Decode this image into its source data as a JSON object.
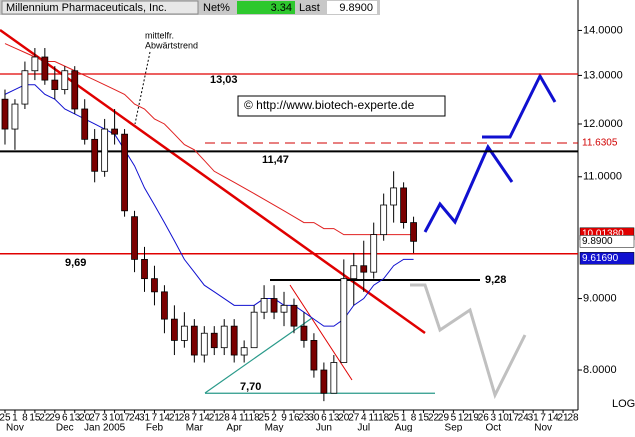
{
  "chart_data": {
    "type": "candlestick",
    "header": {
      "name": "Millennium Pharmaceuticals, Inc.",
      "net_label": "Net%",
      "net": 3.34,
      "last_label": "Last",
      "last": {
        "value": 9.89,
        "label": "9.8900"
      }
    },
    "categories": [
      "25",
      "1",
      "8",
      "15",
      "22",
      "29",
      "6",
      "13",
      "20",
      "27",
      "3",
      "10",
      "17",
      "24",
      "31",
      "7",
      "14",
      "21",
      "28",
      "7",
      "14",
      "21",
      "28",
      "4",
      "11",
      "18",
      "25",
      "2",
      "9",
      "16",
      "23",
      "30",
      "6",
      "13",
      "20",
      "27",
      "4",
      "11",
      "18",
      "25",
      "1",
      "8",
      "15",
      "22",
      "29",
      "5",
      "12",
      "19",
      "26",
      "3",
      "10",
      "17",
      "24",
      "31",
      "7",
      "14",
      "21",
      "28"
    ],
    "month_labels": [
      null,
      "Nov",
      null,
      null,
      null,
      null,
      "Dec",
      null,
      null,
      null,
      "Jan 2005",
      null,
      null,
      null,
      null,
      "Feb",
      null,
      null,
      null,
      "Mar",
      null,
      null,
      null,
      "Apr",
      null,
      null,
      null,
      "May",
      null,
      null,
      null,
      null,
      "Jun",
      null,
      null,
      null,
      "Jul",
      null,
      null,
      null,
      "Aug",
      null,
      null,
      null,
      null,
      "Sep",
      null,
      null,
      null,
      "Oct",
      null,
      null,
      null,
      null,
      "Nov",
      null,
      null,
      null
    ],
    "ohlc": {
      "open": [
        12.5,
        11.9,
        12.4,
        13.1,
        13.4,
        12.9,
        12.7,
        13.1,
        12.3,
        11.7,
        11.1,
        11.9,
        11.8,
        10.3,
        9.6,
        9.3,
        9.1,
        8.7,
        8.4,
        8.6,
        8.2,
        8.5,
        8.3,
        8.6,
        8.2,
        8.3,
        8.8,
        9.0,
        8.8,
        8.9,
        8.6,
        8.4,
        8.0,
        7.7,
        8.1,
        9.3,
        9.5,
        9.4,
        10.0,
        10.5,
        10.8,
        10.2,
        null,
        null,
        null,
        null,
        null,
        null,
        null,
        null,
        null,
        null,
        null,
        null,
        null,
        null,
        null,
        null
      ],
      "high": [
        12.7,
        12.5,
        13.3,
        13.6,
        13.6,
        13.2,
        13.2,
        13.2,
        12.5,
        11.9,
        12.1,
        12.3,
        11.9,
        10.4,
        9.8,
        9.5,
        9.2,
        8.9,
        8.8,
        8.7,
        8.6,
        8.6,
        8.7,
        8.7,
        8.4,
        8.9,
        9.2,
        9.2,
        9.1,
        9.0,
        8.8,
        8.5,
        8.1,
        8.2,
        9.6,
        9.7,
        9.9,
        10.2,
        10.7,
        11.1,
        10.9,
        10.3,
        null,
        null,
        null,
        null,
        null,
        null,
        null,
        null,
        null,
        null,
        null,
        null,
        null,
        null,
        null,
        null
      ],
      "low": [
        11.6,
        11.5,
        12.3,
        12.9,
        12.8,
        12.5,
        12.6,
        12.2,
        11.6,
        10.9,
        11.0,
        11.6,
        10.3,
        9.4,
        9.1,
        8.9,
        8.5,
        8.2,
        8.3,
        8.1,
        8.1,
        8.2,
        8.2,
        8.1,
        8.1,
        8.3,
        8.7,
        8.7,
        8.6,
        8.5,
        8.3,
        7.9,
        7.6,
        7.7,
        8.1,
        8.9,
        9.1,
        9.3,
        9.9,
        10.2,
        10.1,
        9.7,
        null,
        null,
        null,
        null,
        null,
        null,
        null,
        null,
        null,
        null,
        null,
        null,
        null,
        null,
        null,
        null
      ],
      "close": [
        11.9,
        12.4,
        13.1,
        13.4,
        12.9,
        12.7,
        13.1,
        12.3,
        11.7,
        11.1,
        11.9,
        11.8,
        10.4,
        9.6,
        9.3,
        9.1,
        8.7,
        8.4,
        8.6,
        8.2,
        8.5,
        8.3,
        8.6,
        8.2,
        8.3,
        8.8,
        9.0,
        8.8,
        8.9,
        8.6,
        8.4,
        8.0,
        7.7,
        8.1,
        9.3,
        9.5,
        9.4,
        10.0,
        10.5,
        10.8,
        10.2,
        9.89,
        null,
        null,
        null,
        null,
        null,
        null,
        null,
        null,
        null,
        null,
        null,
        null,
        null,
        null,
        null,
        null
      ]
    },
    "series": [
      {
        "color": "#1010d0",
        "values": [
          12.6,
          12.7,
          12.8,
          12.8,
          12.6,
          12.5,
          12.3,
          12.2,
          12.1,
          12.0,
          11.9,
          11.8,
          11.5,
          11.2,
          10.8,
          10.5,
          10.2,
          9.9,
          9.6,
          9.4,
          9.2,
          9.1,
          9.0,
          8.9,
          8.9,
          8.9,
          9.0,
          9.0,
          8.9,
          8.9,
          8.8,
          8.7,
          8.6,
          8.6,
          8.7,
          8.9,
          9.0,
          9.2,
          9.3,
          9.5,
          9.6,
          9.6,
          null,
          null,
          null,
          null,
          null,
          null,
          null,
          null,
          null,
          null,
          null,
          null,
          null,
          null,
          null,
          null
        ]
      },
      {
        "color": "#e02020",
        "values": [
          13.7,
          13.6,
          13.5,
          13.4,
          13.3,
          13.3,
          13.2,
          13.1,
          13.0,
          12.9,
          12.8,
          12.7,
          12.6,
          12.4,
          12.3,
          12.1,
          12.0,
          11.8,
          11.6,
          11.5,
          11.3,
          11.1,
          11.0,
          10.9,
          10.8,
          10.7,
          10.6,
          10.5,
          10.4,
          10.3,
          10.2,
          10.2,
          10.1,
          10.1,
          10.0,
          10.0,
          10.0,
          10.0,
          10.0,
          10.0,
          10.0,
          10.0,
          null,
          null,
          null,
          null,
          null,
          null,
          null,
          null,
          null,
          null,
          null,
          null,
          null,
          null,
          null,
          null
        ]
      }
    ],
    "levels": [
      {
        "value": 13.03,
        "label": "13,03",
        "color": "#e00000"
      },
      {
        "value": 11.47,
        "label": "11,47",
        "color": "#000000"
      },
      {
        "value": 11.6305,
        "color": "#d00000"
      },
      {
        "value": 9.69,
        "label": "9,69",
        "color": "#e00000"
      },
      {
        "value": 9.28,
        "label": "9,28",
        "color": "#000000"
      },
      {
        "value": 7.7,
        "label": "7,70",
        "color": "#2a9a8a"
      }
    ],
    "price_labels": [
      {
        "value": 11.6305,
        "label": "11.6305",
        "color": "#d00000"
      },
      {
        "value": 10.0138,
        "label": "10.01380",
        "color": "#e00000"
      },
      {
        "value": 9.89,
        "label": "9.8900",
        "color": "#ffffff"
      },
      {
        "value": 9.6169,
        "label": "9.61690",
        "color": "#1010d0"
      }
    ],
    "annotations": {
      "trend_line1": "mittelfr.",
      "trend_line2": "Abwärtstrend",
      "copyright": "©  http://www.biotech-experte.de"
    },
    "ylim": [
      7.49,
      14.72
    ],
    "yticks": [
      {
        "value": 14,
        "label": "14.0000"
      },
      {
        "value": 13,
        "label": "13.0000"
      },
      {
        "value": 12,
        "label": "12.0000"
      },
      {
        "value": 11,
        "label": "11.0000"
      },
      {
        "value": 9,
        "label": "9.0000"
      },
      {
        "value": 8,
        "label": "8.0000"
      }
    ],
    "log_scale": true,
    "log_label": "LOG"
  }
}
